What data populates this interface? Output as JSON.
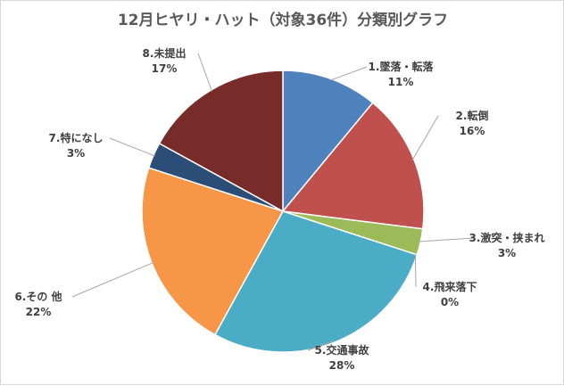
{
  "chart_data": {
    "type": "pie",
    "title": "12月ヒヤリ・ハット（対象36件）分類別グラフ",
    "categories": [
      "1.墜落・転落",
      "2.転倒",
      "3.激突・挟まれ",
      "4.飛来落下",
      "5.交通事故",
      "6.その 他",
      "7.特になし",
      "8.未提出"
    ],
    "values": [
      11,
      16,
      3,
      0,
      28,
      22,
      3,
      17
    ],
    "value_labels": [
      "11%",
      "16%",
      "3%",
      "0%",
      "28%",
      "22%",
      "3%",
      "17%"
    ],
    "colors": [
      "#4f81bd",
      "#c0504d",
      "#9bbb59",
      "#8064a2",
      "#4bacc6",
      "#f79646",
      "#2c4d75",
      "#772c2a"
    ],
    "legend": "none",
    "start_angle_deg": 0,
    "direction": "clockwise"
  }
}
